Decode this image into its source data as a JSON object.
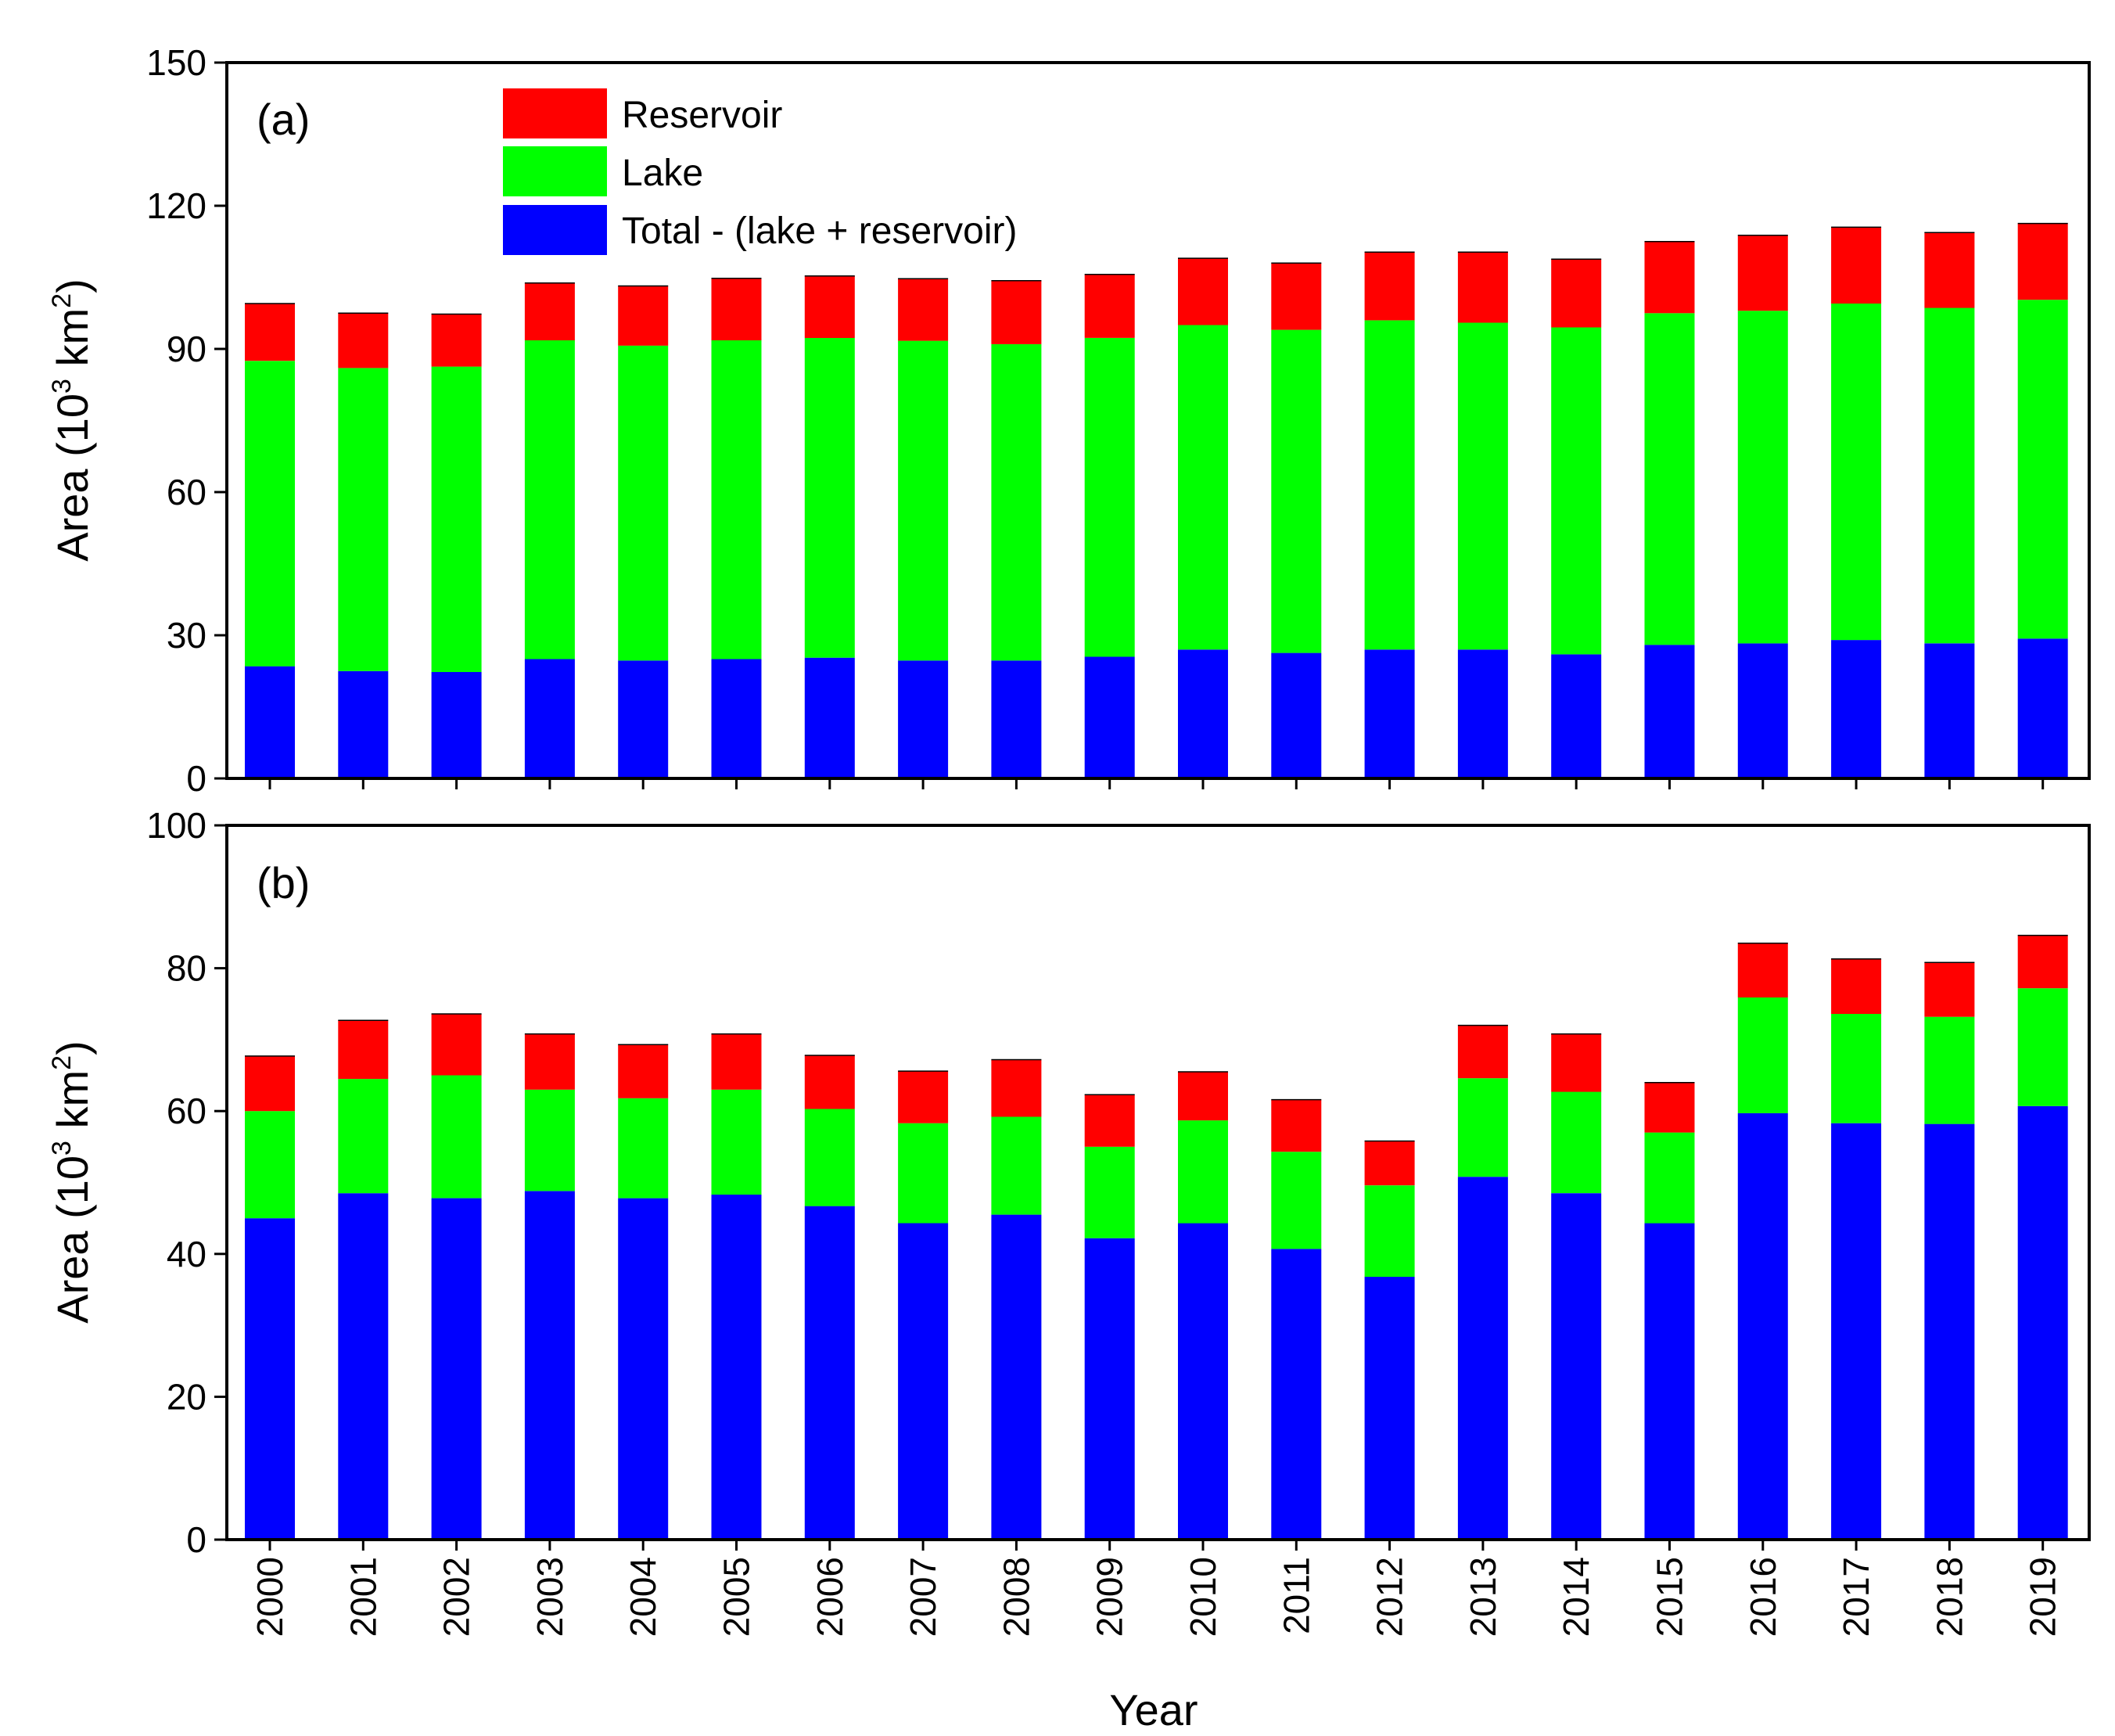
{
  "colors": {
    "reservoir": "#ff0000",
    "lake": "#00ff00",
    "remainder": "#0000ff",
    "axes": "#000000"
  },
  "legend": {
    "reservoir": "Reservoir",
    "lake": "Lake",
    "remainder": "Total - (lake + reservoir)"
  },
  "xlabel": "Year",
  "ylabel_main": "Area (10",
  "ylabel_sup": "3",
  "ylabel_mid": " km",
  "ylabel_sup2": "2",
  "ylabel_end": ")",
  "chart_data": [
    {
      "type": "bar",
      "stacked": true,
      "panel_label": "(a)",
      "categories": [
        "2000",
        "2001",
        "2002",
        "2003",
        "2004",
        "2005",
        "2006",
        "2007",
        "2008",
        "2009",
        "2010",
        "2011",
        "2012",
        "2013",
        "2014",
        "2015",
        "2016",
        "2017",
        "2018",
        "2019"
      ],
      "ylim": [
        0,
        150
      ],
      "yticks": [
        0,
        30,
        60,
        90,
        120,
        150
      ],
      "legend_position": "top-left",
      "series": [
        {
          "name": "Total - (lake + reservoir)",
          "values": [
            23.5,
            22.5,
            22.3,
            25.0,
            24.7,
            25.0,
            25.3,
            24.7,
            24.7,
            25.5,
            27.0,
            26.3,
            27.0,
            27.0,
            26.0,
            28.0,
            28.3,
            29.0,
            28.3,
            29.3
          ]
        },
        {
          "name": "Lake",
          "values": [
            64.0,
            63.5,
            64.0,
            66.8,
            66.0,
            66.8,
            67.0,
            67.0,
            66.3,
            66.8,
            68.0,
            67.7,
            69.0,
            68.5,
            68.5,
            69.5,
            69.7,
            70.5,
            70.3,
            71.0
          ]
        },
        {
          "name": "Reservoir",
          "values": [
            12.0,
            11.5,
            11.0,
            12.0,
            12.5,
            13.0,
            13.0,
            13.0,
            13.3,
            13.3,
            14.0,
            14.0,
            14.3,
            14.8,
            14.3,
            15.0,
            15.8,
            16.0,
            15.8,
            16.0
          ]
        }
      ]
    },
    {
      "type": "bar",
      "stacked": true,
      "panel_label": "(b)",
      "categories": [
        "2000",
        "2001",
        "2002",
        "2003",
        "2004",
        "2005",
        "2006",
        "2007",
        "2008",
        "2009",
        "2010",
        "2011",
        "2012",
        "2013",
        "2014",
        "2015",
        "2016",
        "2017",
        "2018",
        "2019"
      ],
      "ylim": [
        0,
        100
      ],
      "yticks": [
        0,
        20,
        40,
        60,
        80,
        100
      ],
      "series": [
        {
          "name": "Total - (lake + reservoir)",
          "values": [
            45.0,
            48.5,
            47.8,
            48.8,
            47.8,
            48.3,
            46.7,
            44.3,
            45.5,
            42.2,
            44.3,
            40.7,
            36.8,
            50.8,
            48.5,
            44.3,
            59.7,
            58.3,
            58.2,
            60.7
          ]
        },
        {
          "name": "Lake",
          "values": [
            15.0,
            16.0,
            17.2,
            14.2,
            14.0,
            14.7,
            13.6,
            14.0,
            13.7,
            12.8,
            14.4,
            13.6,
            12.8,
            13.8,
            14.2,
            12.7,
            16.2,
            15.3,
            15.0,
            16.5
          ]
        },
        {
          "name": "Reservoir",
          "values": [
            7.7,
            8.2,
            8.6,
            7.8,
            7.5,
            7.8,
            7.5,
            7.3,
            8.0,
            7.3,
            6.8,
            7.3,
            6.2,
            7.4,
            8.1,
            7.0,
            7.6,
            7.7,
            7.6,
            7.4
          ]
        }
      ]
    }
  ]
}
